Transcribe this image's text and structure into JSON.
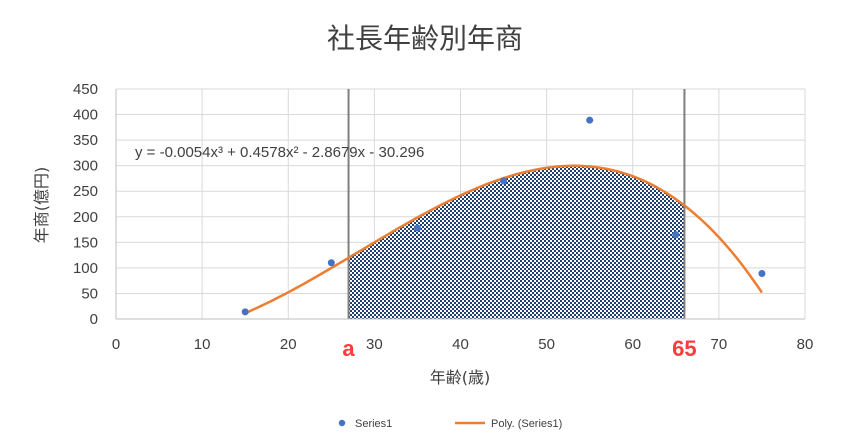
{
  "chart_data": {
    "type": "scatter",
    "title": "社長年齢別年商",
    "xlabel": "年齢(歳)",
    "ylabel": "年商(億円)",
    "xlim": [
      0,
      80
    ],
    "ylim": [
      0,
      450
    ],
    "xticks": [
      0,
      10,
      20,
      30,
      40,
      50,
      60,
      70,
      80
    ],
    "yticks": [
      0,
      50,
      100,
      150,
      200,
      250,
      300,
      350,
      400,
      450
    ],
    "grid": true,
    "legend_position": "bottom",
    "series": [
      {
        "name": "Series1",
        "type": "scatter",
        "color": "#4472c4",
        "x": [
          15,
          25,
          35,
          45,
          55,
          65,
          75
        ],
        "y": [
          14,
          110,
          178,
          270,
          389,
          165,
          89
        ]
      },
      {
        "name": "Poly. (Series1)",
        "type": "trendline",
        "color": "#ed7d31",
        "x_range": [
          15,
          75
        ],
        "coefficients": {
          "a3": -0.0054,
          "a2": 0.4578,
          "a1": -2.8679,
          "a0": -30.296
        }
      }
    ],
    "trendline_equation": "y = -0.0054x³ + 0.4578x² - 2.8679x - 30.296",
    "shaded_region": {
      "x_from": 27,
      "x_to": 66
    },
    "vertical_lines": [
      {
        "x": 27,
        "label": "a"
      },
      {
        "x": 66,
        "label": "65"
      }
    ],
    "marker_label_color": "#ff3b3b",
    "shade_color": "#1f3f6e"
  }
}
